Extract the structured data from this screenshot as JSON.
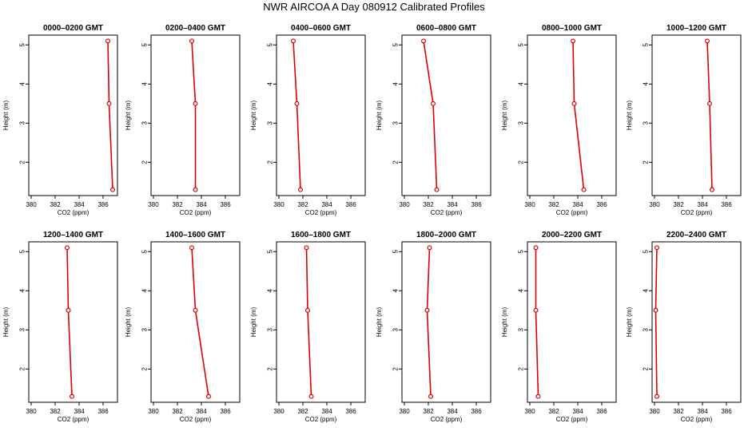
{
  "title": "NWR AIRCOA A  Day 080912  Calibrated Profiles",
  "chart_data": {
    "type": "line",
    "xlabel": "CO2 (ppm)",
    "ylabel": "Height (m)",
    "xlim": [
      379.8,
      387.2
    ],
    "ylim": [
      1.15,
      5.25
    ],
    "xticks": [
      380,
      382,
      384,
      386
    ],
    "yticks": [
      2,
      3,
      4,
      5
    ],
    "heights": [
      5.1,
      3.5,
      1.3
    ],
    "line_color": "#dd0000",
    "panels": [
      {
        "title": "0000–0200 GMT",
        "x": [
          386.4,
          386.5,
          386.8
        ]
      },
      {
        "title": "0200–0400 GMT",
        "x": [
          383.2,
          383.5,
          383.5
        ]
      },
      {
        "title": "0400–0600 GMT",
        "x": [
          381.2,
          381.5,
          381.8
        ]
      },
      {
        "title": "0600–0800 GMT",
        "x": [
          381.6,
          382.4,
          382.7
        ]
      },
      {
        "title": "0800–1000 GMT",
        "x": [
          383.6,
          383.7,
          384.5
        ]
      },
      {
        "title": "1000–1200 GMT",
        "x": [
          384.4,
          384.6,
          384.8
        ]
      },
      {
        "title": "1200–1400 GMT",
        "x": [
          383.0,
          383.1,
          383.4
        ]
      },
      {
        "title": "1400–1600 GMT",
        "x": [
          383.2,
          383.5,
          384.6
        ]
      },
      {
        "title": "1600–1800 GMT",
        "x": [
          382.3,
          382.4,
          382.7
        ]
      },
      {
        "title": "1800–2000 GMT",
        "x": [
          382.1,
          381.9,
          382.2
        ]
      },
      {
        "title": "2000–2200 GMT",
        "x": [
          380.5,
          380.5,
          380.7
        ]
      },
      {
        "title": "2200–2400 GMT",
        "x": [
          380.2,
          380.1,
          380.2
        ]
      }
    ]
  }
}
